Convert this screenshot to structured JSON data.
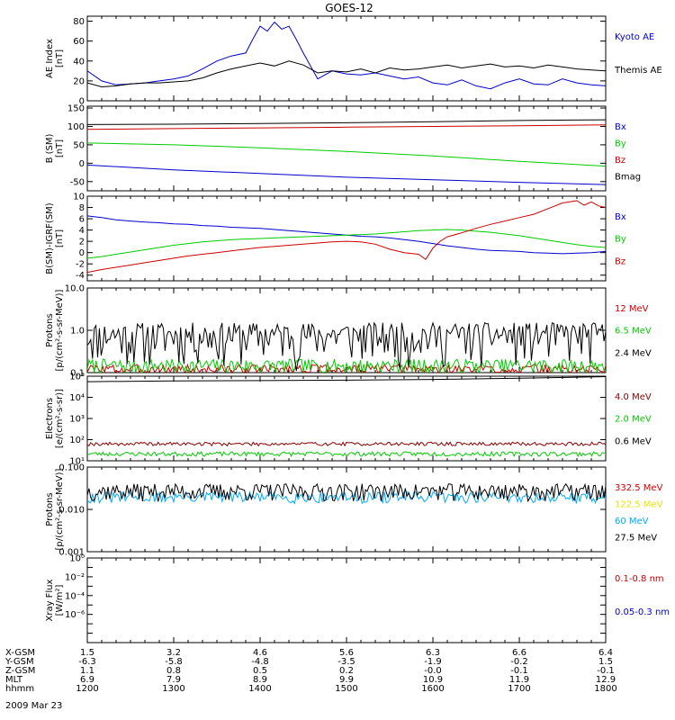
{
  "title": "GOES-12",
  "date": "2009 Mar 23",
  "chart_data": [
    {
      "type": "line",
      "id": "ae",
      "ylabel": "AE Index\n[nT]",
      "ylim": [
        0,
        85
      ],
      "yscale": "linear",
      "yticks": [
        0,
        20,
        40,
        60,
        80
      ],
      "ytick_labels": [
        "0",
        "20",
        "40",
        "60",
        "80"
      ],
      "legend_placement": "right",
      "series": [
        {
          "name": "Kyoto AE",
          "color": "#0000cc",
          "x": [
            1200,
            1210,
            1220,
            1230,
            1240,
            1250,
            1300,
            1310,
            1320,
            1330,
            1340,
            1350,
            1355,
            1400,
            1405,
            1410,
            1415,
            1420,
            1425,
            1430,
            1440,
            1450,
            1500,
            1510,
            1520,
            1530,
            1540,
            1550,
            1600,
            1610,
            1620,
            1630,
            1640,
            1650,
            1700,
            1710,
            1720,
            1730,
            1740,
            1750,
            1800
          ],
          "y": [
            30,
            20,
            16,
            17,
            18,
            20,
            22,
            25,
            32,
            40,
            45,
            48,
            62,
            75,
            70,
            79,
            72,
            75,
            62,
            48,
            22,
            30,
            27,
            26,
            28,
            25,
            22,
            24,
            18,
            16,
            21,
            15,
            12,
            18,
            22,
            17,
            16,
            22,
            18,
            16,
            15
          ]
        },
        {
          "name": "Themis AE",
          "color": "#000000",
          "x": [
            1200,
            1210,
            1220,
            1230,
            1240,
            1250,
            1300,
            1310,
            1320,
            1330,
            1340,
            1350,
            1400,
            1410,
            1420,
            1430,
            1440,
            1450,
            1500,
            1510,
            1520,
            1530,
            1540,
            1550,
            1600,
            1610,
            1620,
            1630,
            1640,
            1650,
            1700,
            1710,
            1720,
            1730,
            1740,
            1750,
            1800
          ],
          "y": [
            18,
            14,
            15,
            17,
            18,
            18,
            19,
            20,
            23,
            28,
            32,
            35,
            38,
            35,
            40,
            36,
            28,
            30,
            29,
            32,
            28,
            33,
            31,
            32,
            34,
            36,
            33,
            35,
            37,
            34,
            35,
            33,
            36,
            34,
            32,
            31,
            30
          ]
        }
      ]
    },
    {
      "type": "line",
      "id": "bsm",
      "ylabel": "B (SM)\n[nT]",
      "ylim": [
        -75,
        155
      ],
      "yscale": "linear",
      "yticks": [
        -50,
        0,
        50,
        100,
        150
      ],
      "ytick_labels": [
        "-50",
        "0",
        "50",
        "100",
        "150"
      ],
      "legend_placement": "right",
      "series": [
        {
          "name": "Bx",
          "color": "#0000cc",
          "x": [
            1200,
            1300,
            1400,
            1500,
            1600,
            1700,
            1800
          ],
          "y": [
            -5,
            -18,
            -28,
            -38,
            -45,
            -52,
            -58
          ]
        },
        {
          "name": "By",
          "color": "#00cc00",
          "x": [
            1200,
            1300,
            1400,
            1500,
            1600,
            1700,
            1800
          ],
          "y": [
            55,
            50,
            42,
            32,
            20,
            5,
            -8
          ]
        },
        {
          "name": "Bz",
          "color": "#cc0000",
          "x": [
            1200,
            1300,
            1400,
            1500,
            1600,
            1700,
            1800
          ],
          "y": [
            92,
            94,
            96,
            98,
            100,
            102,
            104
          ]
        },
        {
          "name": "Bmag",
          "color": "#000000",
          "x": [
            1200,
            1300,
            1400,
            1500,
            1600,
            1700,
            1800
          ],
          "y": [
            105,
            106,
            108,
            110,
            113,
            116,
            118
          ]
        }
      ]
    },
    {
      "type": "line",
      "id": "bdiff",
      "ylabel": "B(SM)-IGRF(SM)\n[nT]",
      "ylim": [
        -5,
        10
      ],
      "yscale": "linear",
      "yticks": [
        -4,
        -2,
        0,
        2,
        4,
        6,
        8,
        10
      ],
      "ytick_labels": [
        "-4",
        "-2",
        "0",
        "2",
        "4",
        "6",
        "8",
        "10"
      ],
      "legend_placement": "right",
      "series": [
        {
          "name": "Bx",
          "color": "#0000cc",
          "x": [
            1200,
            1210,
            1220,
            1230,
            1240,
            1250,
            1300,
            1310,
            1320,
            1330,
            1340,
            1350,
            1400,
            1410,
            1420,
            1430,
            1440,
            1450,
            1500,
            1510,
            1520,
            1530,
            1540,
            1550,
            1600,
            1610,
            1620,
            1630,
            1640,
            1650,
            1700,
            1710,
            1720,
            1730,
            1740,
            1750,
            1800
          ],
          "y": [
            6.5,
            6.2,
            5.8,
            5.6,
            5.4,
            5.3,
            5.1,
            5.0,
            4.8,
            4.7,
            4.5,
            4.4,
            4.3,
            4.1,
            3.9,
            3.7,
            3.5,
            3.3,
            3.1,
            2.9,
            2.8,
            2.6,
            2.3,
            2.0,
            1.6,
            1.2,
            0.9,
            0.6,
            0.4,
            0.3,
            0.2,
            0.0,
            -0.1,
            -0.2,
            -0.1,
            0.0,
            0.2
          ]
        },
        {
          "name": "By",
          "color": "#00cc00",
          "x": [
            1200,
            1210,
            1220,
            1230,
            1240,
            1250,
            1300,
            1310,
            1320,
            1330,
            1340,
            1350,
            1400,
            1410,
            1420,
            1430,
            1440,
            1450,
            1500,
            1510,
            1520,
            1530,
            1540,
            1550,
            1600,
            1610,
            1620,
            1630,
            1640,
            1650,
            1700,
            1710,
            1720,
            1730,
            1740,
            1750,
            1800
          ],
          "y": [
            -1.0,
            -0.7,
            -0.3,
            0.1,
            0.5,
            0.9,
            1.3,
            1.6,
            1.9,
            2.1,
            2.3,
            2.4,
            2.5,
            2.6,
            2.7,
            2.8,
            2.9,
            3.0,
            3.1,
            3.2,
            3.3,
            3.5,
            3.7,
            3.9,
            4.0,
            4.1,
            4.0,
            3.8,
            3.6,
            3.3,
            3.0,
            2.6,
            2.2,
            1.8,
            1.4,
            1.1,
            0.9
          ]
        },
        {
          "name": "Bz",
          "color": "#cc0000",
          "x": [
            1200,
            1210,
            1220,
            1230,
            1240,
            1250,
            1300,
            1310,
            1320,
            1330,
            1340,
            1350,
            1400,
            1410,
            1420,
            1430,
            1440,
            1450,
            1500,
            1510,
            1520,
            1530,
            1540,
            1550,
            1555,
            1600,
            1605,
            1610,
            1620,
            1630,
            1640,
            1650,
            1700,
            1710,
            1720,
            1730,
            1740,
            1745,
            1750,
            1755,
            1800
          ],
          "y": [
            -3.5,
            -3.0,
            -2.6,
            -2.2,
            -1.8,
            -1.4,
            -1.0,
            -0.6,
            -0.3,
            0.0,
            0.3,
            0.6,
            0.9,
            1.1,
            1.3,
            1.5,
            1.7,
            1.9,
            2.0,
            1.9,
            1.5,
            0.6,
            0.0,
            -0.3,
            -1.2,
            0.8,
            2.0,
            2.8,
            3.5,
            4.3,
            5.0,
            5.6,
            6.2,
            6.8,
            7.8,
            8.8,
            9.2,
            8.4,
            9.0,
            8.3,
            8.0
          ]
        }
      ]
    },
    {
      "type": "line",
      "id": "protons-hi",
      "ylabel": "Protons\n[p/(cm²-s-sr-MeV)]",
      "ylim": [
        0.1,
        10
      ],
      "yscale": "log",
      "yticks": [
        0.1,
        1,
        10
      ],
      "ytick_labels": [
        "0.1",
        "1.0",
        "10.0"
      ],
      "legend_placement": "right",
      "series": [
        {
          "name": "12 MeV",
          "color": "#cc0000",
          "x": [],
          "y": [],
          "noise": {
            "base": 0.11,
            "spread": 0.07,
            "seed": 3
          }
        },
        {
          "name": "6.5 MeV",
          "color": "#00cc00",
          "x": [],
          "y": [],
          "noise": {
            "base": 0.13,
            "spread": 0.12,
            "seed": 7
          }
        },
        {
          "name": "2.4 MeV",
          "color": "#000000",
          "x": [],
          "y": [],
          "noise": {
            "base": 0.6,
            "spread": 1.4,
            "seed": 11
          }
        }
      ]
    },
    {
      "type": "line",
      "id": "electrons",
      "ylabel": "Electrons\n[e/(cm²-s-sr)]",
      "ylim": [
        10,
        100000
      ],
      "yscale": "log",
      "yticks": [
        10,
        100,
        1000,
        10000,
        100000
      ],
      "ytick_labels": [
        "10¹",
        "10²",
        "10³",
        "10⁴",
        "10⁵"
      ],
      "legend_placement": "right",
      "series": [
        {
          "name": "4.0 MeV",
          "color": "#8b0000",
          "x": [
            1200,
            1800
          ],
          "y": [
            60,
            60
          ],
          "noise": {
            "base": 55,
            "spread": 25,
            "seed": 19
          }
        },
        {
          "name": "2.0 MeV",
          "color": "#00cc00",
          "x": [
            1200,
            1800
          ],
          "y": [
            20,
            20
          ],
          "noise": {
            "base": 18,
            "spread": 10,
            "seed": 23
          }
        },
        {
          "name": "0.6 MeV",
          "color": "#000000",
          "x": [
            1200,
            1300,
            1400,
            1500,
            1600,
            1700,
            1800
          ],
          "y": [
            55000,
            60000,
            62000,
            65000,
            70000,
            80000,
            95000
          ]
        }
      ]
    },
    {
      "type": "line",
      "id": "protons-lo",
      "ylabel": "Protons\n[p/(cm²-s-sr-MeV)]",
      "ylim": [
        0.001,
        0.1
      ],
      "yscale": "log",
      "yticks": [
        0.001,
        0.01,
        0.1
      ],
      "ytick_labels": [
        "0.001",
        "0.010",
        "0.100"
      ],
      "legend_placement": "right",
      "series": [
        {
          "name": "332.5 MeV",
          "color": "#cc0000",
          "x": [],
          "y": []
        },
        {
          "name": "122.5 MeV",
          "color": "#e6e600",
          "x": [],
          "y": []
        },
        {
          "name": "60 MeV",
          "color": "#00aaff",
          "x": [],
          "y": [],
          "noise": {
            "base": 0.018,
            "spread": 0.012,
            "seed": 31
          }
        },
        {
          "name": "27.5 MeV",
          "color": "#000000",
          "x": [],
          "y": [],
          "noise": {
            "base": 0.024,
            "spread": 0.025,
            "seed": 37
          }
        }
      ]
    },
    {
      "type": "line",
      "id": "xray",
      "ylabel": "Xray Flux\n[W/m²]",
      "ylim": [
        1e-09,
        1
      ],
      "yscale": "log",
      "yticks": [
        1e-09,
        1e-08,
        1e-07,
        1e-06,
        1e-05,
        0.0001,
        0.001,
        0.01,
        0.1,
        1
      ],
      "ytick_labels": [
        "10⁻⁹",
        "10⁻⁸",
        "10⁻⁷",
        "10⁻⁶",
        "10⁻⁵",
        "10⁻⁴",
        "10⁻³",
        "10⁻²",
        "10⁻¹",
        "10⁰"
      ],
      "ytick_label_show": [
        false,
        false,
        false,
        true,
        false,
        true,
        false,
        true,
        false,
        true
      ],
      "legend_placement": "right",
      "series": [
        {
          "name": "0.1-0.8 nm",
          "color": "#cc0000",
          "x": [],
          "y": []
        },
        {
          "name": "0.05-0.3 nm",
          "color": "#0000cc",
          "x": [],
          "y": []
        }
      ]
    }
  ],
  "x_axis": {
    "range": [
      1200,
      1800
    ],
    "row_labels": [
      "X-GSM",
      "Y-GSM",
      "Z-GSM",
      "MLT",
      "hhmm"
    ],
    "ticks": [
      {
        "x": 1200,
        "values": [
          "1.5",
          "-6.3",
          "1.1",
          "6.9",
          "1200"
        ]
      },
      {
        "x": 1300,
        "values": [
          "3.2",
          "-5.8",
          "0.8",
          "7.9",
          "1300"
        ]
      },
      {
        "x": 1400,
        "values": [
          "4.6",
          "-4.8",
          "0.5",
          "8.9",
          "1400"
        ]
      },
      {
        "x": 1500,
        "values": [
          "5.6",
          "-3.5",
          "0.2",
          "9.9",
          "1500"
        ]
      },
      {
        "x": 1600,
        "values": [
          "6.3",
          "-1.9",
          "-0.0",
          "10.9",
          "1600"
        ]
      },
      {
        "x": 1700,
        "values": [
          "6.6",
          "-0.2",
          "-0.1",
          "11.9",
          "1700"
        ]
      },
      {
        "x": 1800,
        "values": [
          "6.4",
          "1.5",
          "-0.1",
          "12.9",
          "1800"
        ]
      }
    ]
  }
}
